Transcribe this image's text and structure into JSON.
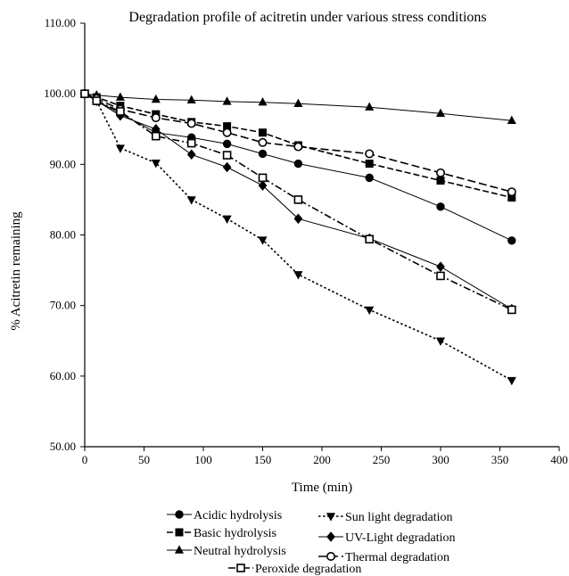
{
  "chart_data": {
    "type": "line",
    "title": "Degradation profile of acitretin under various stress conditions",
    "xlabel": "Time (min)",
    "ylabel": "% Acitretin remaining",
    "xlim": [
      0,
      400
    ],
    "ylim": [
      50,
      110
    ],
    "xticks": [
      "0",
      "50",
      "100",
      "150",
      "200",
      "250",
      "300",
      "350",
      "400"
    ],
    "yticks": [
      "50.00",
      "60.00",
      "70.00",
      "80.00",
      "90.00",
      "100.00",
      "110.00"
    ],
    "grid": false,
    "legend_position": "bottom",
    "series": [
      {
        "name": "Acidic hydrolysis",
        "marker": "circle-filled",
        "line": "solid",
        "x": [
          0,
          10,
          30,
          60,
          90,
          120,
          150,
          180,
          240,
          300,
          360
        ],
        "y": [
          100,
          99,
          97.2,
          94.5,
          93.8,
          92.9,
          91.5,
          90.1,
          88.1,
          84,
          79.2
        ]
      },
      {
        "name": "Basic hydrolysis",
        "marker": "square-filled",
        "line": "dashed",
        "x": [
          0,
          10,
          30,
          60,
          90,
          120,
          150,
          180,
          240,
          300,
          360
        ],
        "y": [
          100,
          99.5,
          98.3,
          97.1,
          96,
          95.4,
          94.5,
          92.7,
          90.1,
          87.7,
          85.3
        ]
      },
      {
        "name": "Neutral hydrolysis",
        "marker": "triangle-up-filled",
        "line": "solid",
        "x": [
          0,
          10,
          30,
          60,
          90,
          120,
          150,
          180,
          240,
          300,
          360
        ],
        "y": [
          100,
          99.8,
          99.5,
          99.2,
          99.1,
          98.9,
          98.8,
          98.6,
          98.1,
          97.2,
          96.2
        ]
      },
      {
        "name": "Sun light degradation",
        "marker": "triangle-down-filled",
        "line": "dotted",
        "x": [
          0,
          10,
          30,
          60,
          90,
          120,
          150,
          180,
          240,
          300,
          360
        ],
        "y": [
          100,
          99,
          92.3,
          90.2,
          85,
          82.3,
          79.3,
          74.4,
          69.4,
          65,
          59.4
        ]
      },
      {
        "name": "UV-Light degradation",
        "marker": "diamond-filled",
        "line": "solid",
        "x": [
          0,
          10,
          30,
          60,
          90,
          120,
          150,
          180,
          240,
          300,
          360
        ],
        "y": [
          100,
          99,
          96.9,
          95,
          91.4,
          89.6,
          87,
          82.3,
          79.5,
          75.5,
          69.5
        ]
      },
      {
        "name": "Thermal degradation",
        "marker": "circle-open",
        "line": "long-dash",
        "x": [
          0,
          10,
          30,
          60,
          90,
          120,
          150,
          180,
          240,
          300,
          360
        ],
        "y": [
          100,
          99.3,
          97.8,
          96.6,
          95.8,
          94.5,
          93.1,
          92.5,
          91.5,
          88.8,
          86.1
        ]
      },
      {
        "name": "Peroxide degradation",
        "marker": "square-open",
        "line": "dash-dot",
        "x": [
          0,
          10,
          30,
          60,
          90,
          120,
          150,
          180,
          240,
          300,
          360
        ],
        "y": [
          100,
          99,
          97.5,
          94,
          93,
          91.3,
          88.1,
          85,
          79.4,
          74.2,
          69.4
        ]
      }
    ]
  }
}
